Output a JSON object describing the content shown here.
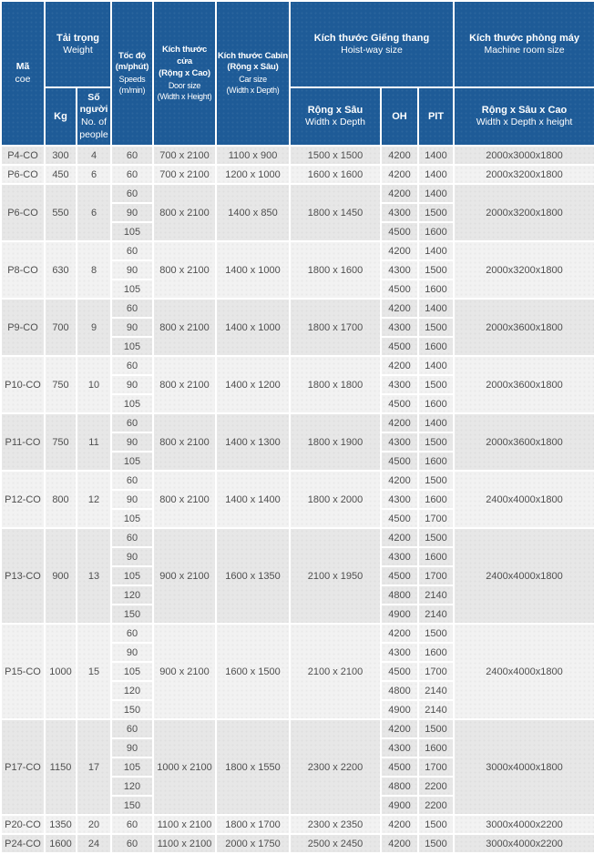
{
  "colors": {
    "header_bg": "#1e5b97",
    "row_dark": "#e7e7e7",
    "row_light": "#f2f2f2",
    "cell_text": "#4f4f4f",
    "header_text": "#ffffff"
  },
  "header": {
    "code": [
      "Mã",
      "coe"
    ],
    "weight": [
      "Tải trọng",
      "Weight"
    ],
    "kg": "Kg",
    "people": [
      "Số người",
      "No. of people"
    ],
    "speed": [
      "Tốc độ",
      "(m/phút)",
      "Speeds",
      "(m/min)"
    ],
    "door": [
      "Kích thước cửa",
      "(Rộng x Cao)",
      "Door size",
      "(Width x Height)"
    ],
    "cabin": [
      "Kích thước Cabin",
      "(Rộng x Sâu)",
      "Car size",
      "(Width x Depth)"
    ],
    "hoistway": [
      "Kích thước Giếng thang",
      "Hoist-way size"
    ],
    "hoistway_wd": [
      "Rộng x Sâu",
      "Width x Depth"
    ],
    "oh": "OH",
    "pit": "PIT",
    "machine": [
      "Kích thước phòng máy",
      "Machine room size"
    ],
    "machine_wdh": [
      "Rộng x Sâu x Cao",
      "Width x Depth x height"
    ]
  },
  "table": {
    "rows": [
      {
        "code": "P4-CO",
        "kg": "300",
        "people": "4",
        "speeds": [
          "60"
        ],
        "door": "700 x 2100",
        "cabin": "1100 x 900",
        "hoistway": "1500 x 1500",
        "oh": [
          "4200"
        ],
        "pit": [
          "1400"
        ],
        "machine": "2000x3000x1800"
      },
      {
        "code": "P6-CO",
        "kg": "450",
        "people": "6",
        "speeds": [
          "60"
        ],
        "door": "700 x 2100",
        "cabin": "1200 x 1000",
        "hoistway": "1600 x 1600",
        "oh": [
          "4200"
        ],
        "pit": [
          "1400"
        ],
        "machine": "2000x3200x1800"
      },
      {
        "code": "P6-CO",
        "kg": "550",
        "people": "6",
        "speeds": [
          "60",
          "90",
          "105"
        ],
        "door": "800 x 2100",
        "cabin": "1400 x 850",
        "hoistway": "1800 x 1450",
        "oh": [
          "4200",
          "4300",
          "4500"
        ],
        "pit": [
          "1400",
          "1500",
          "1600"
        ],
        "machine": "2000x3200x1800"
      },
      {
        "code": "P8-CO",
        "kg": "630",
        "people": "8",
        "speeds": [
          "60",
          "90",
          "105"
        ],
        "door": "800 x 2100",
        "cabin": "1400 x 1000",
        "hoistway": "1800 x 1600",
        "oh": [
          "4200",
          "4300",
          "4500"
        ],
        "pit": [
          "1400",
          "1500",
          "1600"
        ],
        "machine": "2000x3200x1800"
      },
      {
        "code": "P9-CO",
        "kg": "700",
        "people": "9",
        "speeds": [
          "60",
          "90",
          "105"
        ],
        "door": "800 x 2100",
        "cabin": "1400 x 1000",
        "hoistway": "1800 x 1700",
        "oh": [
          "4200",
          "4300",
          "4500"
        ],
        "pit": [
          "1400",
          "1500",
          "1600"
        ],
        "machine": "2000x3600x1800"
      },
      {
        "code": "P10-CO",
        "kg": "750",
        "people": "10",
        "speeds": [
          "60",
          "90",
          "105"
        ],
        "door": "800 x 2100",
        "cabin": "1400 x 1200",
        "hoistway": "1800 x 1800",
        "oh": [
          "4200",
          "4300",
          "4500"
        ],
        "pit": [
          "1400",
          "1500",
          "1600"
        ],
        "machine": "2000x3600x1800"
      },
      {
        "code": "P11-CO",
        "kg": "750",
        "people": "11",
        "speeds": [
          "60",
          "90",
          "105"
        ],
        "door": "800 x 2100",
        "cabin": "1400 x 1300",
        "hoistway": "1800 x 1900",
        "oh": [
          "4200",
          "4300",
          "4500"
        ],
        "pit": [
          "1400",
          "1500",
          "1600"
        ],
        "machine": "2000x3600x1800"
      },
      {
        "code": "P12-CO",
        "kg": "800",
        "people": "12",
        "speeds": [
          "60",
          "90",
          "105"
        ],
        "door": "800 x 2100",
        "cabin": "1400 x 1400",
        "hoistway": "1800 x 2000",
        "oh": [
          "4200",
          "4300",
          "4500"
        ],
        "pit": [
          "1500",
          "1600",
          "1700"
        ],
        "machine": "2400x4000x1800"
      },
      {
        "code": "P13-CO",
        "kg": "900",
        "people": "13",
        "speeds": [
          "60",
          "90",
          "105",
          "120",
          "150"
        ],
        "door": "900 x 2100",
        "cabin": "1600 x 1350",
        "hoistway": "2100 x 1950",
        "oh": [
          "4200",
          "4300",
          "4500",
          "4800",
          "4900"
        ],
        "pit": [
          "1500",
          "1600",
          "1700",
          "2140",
          "2140"
        ],
        "machine": "2400x4000x1800"
      },
      {
        "code": "P15-CO",
        "kg": "1000",
        "people": "15",
        "speeds": [
          "60",
          "90",
          "105",
          "120",
          "150"
        ],
        "door": "900 x 2100",
        "cabin": "1600 x 1500",
        "hoistway": "2100 x 2100",
        "oh": [
          "4200",
          "4300",
          "4500",
          "4800",
          "4900"
        ],
        "pit": [
          "1500",
          "1600",
          "1700",
          "2140",
          "2140"
        ],
        "machine": "2400x4000x1800"
      },
      {
        "code": "P17-CO",
        "kg": "1150",
        "people": "17",
        "speeds": [
          "60",
          "90",
          "105",
          "120",
          "150"
        ],
        "door": "1000 x 2100",
        "cabin": "1800 x 1550",
        "hoistway": "2300 x 2200",
        "oh": [
          "4200",
          "4300",
          "4500",
          "4800",
          "4900"
        ],
        "pit": [
          "1500",
          "1600",
          "1700",
          "2200",
          "2200"
        ],
        "machine": "3000x4000x1800"
      },
      {
        "code": "P20-CO",
        "kg": "1350",
        "people": "20",
        "speeds": [
          "60"
        ],
        "door": "1100 x 2100",
        "cabin": "1800 x 1700",
        "hoistway": "2300 x 2350",
        "oh": [
          "4200"
        ],
        "pit": [
          "1500"
        ],
        "machine": "3000x4000x2200"
      },
      {
        "code": "P24-CO",
        "kg": "1600",
        "people": "24",
        "speeds": [
          "60"
        ],
        "door": "1100 x 2100",
        "cabin": "2000 x 1750",
        "hoistway": "2500 x 2450",
        "oh": [
          "4200"
        ],
        "pit": [
          "1500"
        ],
        "machine": "3000x4000x2200"
      }
    ]
  }
}
